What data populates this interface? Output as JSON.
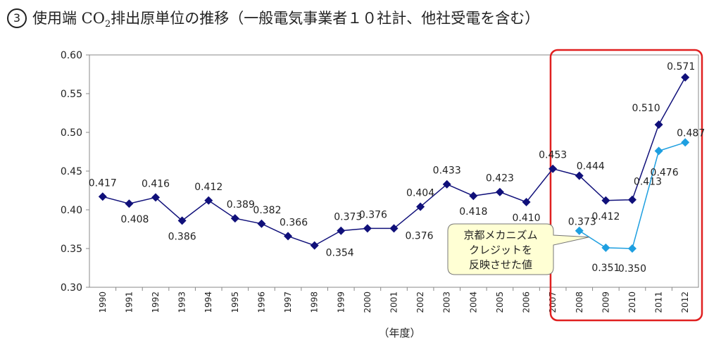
{
  "title": {
    "num": "3",
    "pre": "使用端 CO",
    "sub": "2",
    "post": "排出原単位の推移（一般電気事業者１０社計、他社受電を含む）"
  },
  "chart_data": {
    "type": "line",
    "x": [
      "1990",
      "1991",
      "1992",
      "1993",
      "1994",
      "1995",
      "1996",
      "1997",
      "1998",
      "1999",
      "2000",
      "2001",
      "2002",
      "2003",
      "2004",
      "2005",
      "2006",
      "2007",
      "2008",
      "2009",
      "2010",
      "2011",
      "2012"
    ],
    "series": [
      {
        "name": "",
        "color": "#10107a",
        "marker": "diamond",
        "values": [
          0.417,
          0.408,
          0.416,
          0.386,
          0.412,
          0.389,
          0.382,
          0.366,
          0.354,
          0.373,
          0.376,
          0.376,
          0.404,
          0.433,
          0.418,
          0.423,
          0.41,
          0.453,
          0.444,
          0.412,
          0.413,
          0.51,
          0.571
        ],
        "labels": [
          "0.417",
          "0.408",
          "0.416",
          "0.386",
          "0.412",
          "0.389",
          "0.382",
          "0.366",
          "0.354",
          "0.373",
          "0.376",
          "0.376",
          "0.404",
          "0.433",
          "0.418",
          "0.423",
          "0.410",
          "0.453",
          "0.444",
          "0.412",
          "0.413",
          "0.510",
          "0.571"
        ]
      },
      {
        "name": "京都メカニズムクレジットを反映させた値",
        "color": "#1e9fe0",
        "marker": "diamond",
        "x": [
          "2008",
          "2009",
          "2010",
          "2011",
          "2012"
        ],
        "values": [
          0.373,
          0.351,
          0.35,
          0.476,
          0.487
        ],
        "labels": [
          "0.373",
          "0.351",
          "0.350",
          "0.476",
          "0.487"
        ]
      }
    ],
    "ylim": [
      0.3,
      0.6
    ],
    "yticks": [
      "0.30",
      "0.35",
      "0.40",
      "0.45",
      "0.50",
      "0.55",
      "0.60"
    ],
    "xlabel": "（年度）",
    "ylabel": "",
    "grid": false,
    "callout": [
      "京都メカニズム",
      "クレジットを",
      "反映させた値"
    ],
    "highlight_range": [
      "2008",
      "2012"
    ],
    "highlight_color": "#e02020",
    "callout_fill": "#ffffd4"
  }
}
